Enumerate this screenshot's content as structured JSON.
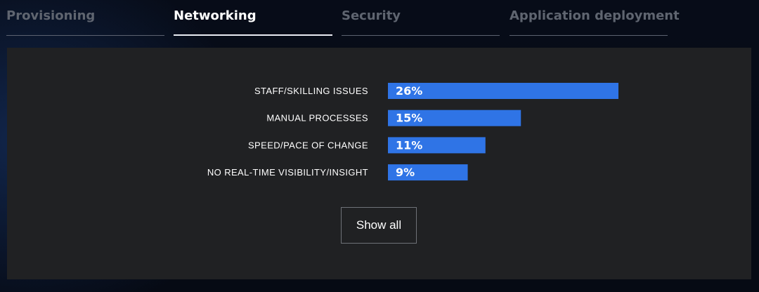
{
  "tabs": [
    {
      "label": "Provisioning",
      "active": false
    },
    {
      "label": "Networking",
      "active": true
    },
    {
      "label": "Security",
      "active": false
    },
    {
      "label": "Application deployment",
      "active": false
    }
  ],
  "show_all_label": "Show all",
  "colors": {
    "background": "#070c18",
    "panel": "#202123",
    "bar": "#2f74e6",
    "text": "#ffffff",
    "inactive_tab": "#5f6570"
  },
  "chart_data": {
    "type": "bar",
    "orientation": "horizontal",
    "categories": [
      "STAFF/SKILLING ISSUES",
      "MANUAL PROCESSES",
      "SPEED/PACE OF CHANGE",
      "NO REAL-TIME VISIBILITY/INSIGHT"
    ],
    "values": [
      26,
      15,
      11,
      9
    ],
    "data_labels": [
      "26%",
      "15%",
      "11%",
      "9%"
    ],
    "unit": "%",
    "title": "",
    "xlabel": "",
    "ylabel": "",
    "grid": false,
    "legend": "none"
  }
}
